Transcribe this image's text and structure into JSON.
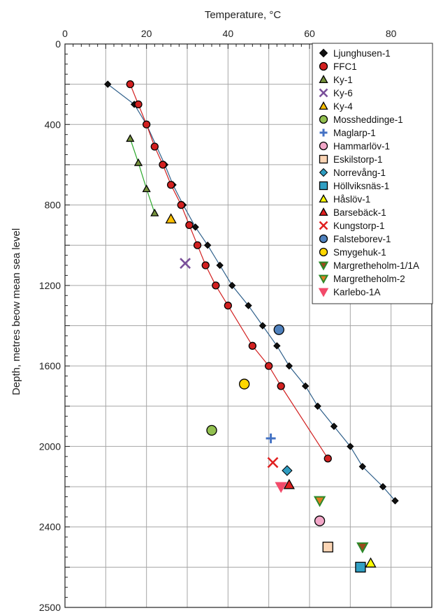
{
  "chart_data": {
    "type": "scatter",
    "xlabel": "Temperature, °C",
    "ylabel": "Depth, metres beow mean sea level",
    "xlim": [
      0,
      90
    ],
    "ylim": [
      0,
      2500
    ],
    "x_ticks": [
      0,
      20,
      40,
      60,
      80
    ],
    "x_tick_labels": [
      "0",
      "20",
      "40",
      "60",
      "80"
    ],
    "y_ticks": [
      0,
      400,
      800,
      1200,
      1600,
      2000,
      2400,
      2500
    ],
    "y_tick_labels": [
      "0",
      "400",
      "800",
      "1200",
      "1600",
      "2000",
      "2400",
      "2500"
    ],
    "y_inverted": true,
    "grid": true,
    "legend_position": "top-right",
    "series": [
      {
        "name": "Ljunghusen-1",
        "marker": "diamond",
        "color": "#111111",
        "line_color": "#2e5f8a",
        "connected": true,
        "points": [
          [
            10.5,
            200
          ],
          [
            17,
            300
          ],
          [
            20,
            400
          ],
          [
            24.5,
            600
          ],
          [
            26.5,
            700
          ],
          [
            29,
            800
          ],
          [
            32,
            910
          ],
          [
            35,
            1000
          ],
          [
            38,
            1100
          ],
          [
            41,
            1200
          ],
          [
            45,
            1300
          ],
          [
            48.5,
            1400
          ],
          [
            52,
            1500
          ],
          [
            55,
            1600
          ],
          [
            59,
            1700
          ],
          [
            62,
            1800
          ],
          [
            66,
            1900
          ],
          [
            70,
            2000
          ],
          [
            73,
            2100
          ],
          [
            78,
            2200
          ],
          [
            81,
            2270
          ]
        ]
      },
      {
        "name": "FFC1",
        "marker": "circle",
        "color": "#d22020",
        "line_color": "#d22020",
        "connected": true,
        "points": [
          [
            16,
            200
          ],
          [
            18,
            300
          ],
          [
            20,
            400
          ],
          [
            22,
            510
          ],
          [
            24,
            600
          ],
          [
            26,
            700
          ],
          [
            28.5,
            800
          ],
          [
            30.5,
            900
          ],
          [
            32.5,
            1000
          ],
          [
            34.5,
            1100
          ],
          [
            37,
            1200
          ],
          [
            40,
            1300
          ],
          [
            46,
            1500
          ],
          [
            50,
            1600
          ],
          [
            53,
            1700
          ],
          [
            64.5,
            2060
          ]
        ]
      },
      {
        "name": "Ky-1",
        "marker": "triangle",
        "color": "#76923c",
        "line_color": "#2aa82a",
        "connected": true,
        "points": [
          [
            16,
            470
          ],
          [
            18,
            590
          ],
          [
            20,
            720
          ],
          [
            22,
            840
          ]
        ]
      },
      {
        "name": "Ky-6",
        "marker": "x",
        "color": "#7a4f9a",
        "connected": false,
        "points": [
          [
            29.5,
            1090
          ]
        ]
      },
      {
        "name": "Ky-4",
        "marker": "triangle",
        "color": "#ffc000",
        "connected": false,
        "points": [
          [
            26,
            870
          ]
        ]
      },
      {
        "name": "Mossheddinge-1",
        "marker": "circle",
        "color": "#92c050",
        "connected": false,
        "points": [
          [
            36,
            1920
          ]
        ]
      },
      {
        "name": "Maglarp-1",
        "marker": "plus",
        "color": "#4472c4",
        "connected": false,
        "points": [
          [
            50.5,
            1960
          ]
        ]
      },
      {
        "name": "Hammarlöv-1",
        "marker": "circle",
        "color": "#f2a7c8",
        "connected": false,
        "points": [
          [
            62.5,
            2370
          ]
        ]
      },
      {
        "name": "Eskilstorp-1",
        "marker": "square",
        "color": "#fbd5b5",
        "connected": false,
        "points": [
          [
            64.5,
            2500
          ]
        ]
      },
      {
        "name": "Norrevång-1",
        "marker": "diamond",
        "color": "#2e9cc0",
        "connected": false,
        "points": [
          [
            54.5,
            2120
          ]
        ]
      },
      {
        "name": "Höllviksnäs-1",
        "marker": "square",
        "color": "#31a0c4",
        "connected": false,
        "points": [
          [
            72.5,
            2600
          ]
        ]
      },
      {
        "name": "Håslöv-1",
        "marker": "triangle",
        "color": "#ffff00",
        "connected": false,
        "points": [
          [
            75,
            2580
          ]
        ]
      },
      {
        "name": "Barsebäck-1",
        "marker": "triangle",
        "color": "#e02020",
        "connected": false,
        "points": [
          [
            55,
            2190
          ]
        ]
      },
      {
        "name": "Kungstorp-1",
        "marker": "x",
        "color": "#e02020",
        "connected": false,
        "points": [
          [
            51,
            2080
          ]
        ]
      },
      {
        "name": "Falsteborev-1",
        "marker": "circle",
        "color": "#4f81bd",
        "connected": false,
        "points": [
          [
            52.5,
            1420
          ]
        ]
      },
      {
        "name": "Smygehuk-1",
        "marker": "circle",
        "color": "#ffd700",
        "connected": false,
        "points": [
          [
            44,
            1690
          ]
        ]
      },
      {
        "name": "Margretheholm-1/1A",
        "marker": "triangle-down",
        "color": "#9b4a1c",
        "stroke": "#2a8a2a",
        "connected": false,
        "points": [
          [
            73,
            2500
          ]
        ]
      },
      {
        "name": "Margretheholm-2",
        "marker": "triangle-down",
        "color": "#e07b22",
        "stroke": "#2a8a2a",
        "connected": false,
        "points": [
          [
            62.5,
            2270
          ]
        ]
      },
      {
        "name": "Karlebo-1A",
        "marker": "triangle-down",
        "color": "#f24a6a",
        "connected": false,
        "points": [
          [
            53,
            2200
          ]
        ]
      }
    ]
  }
}
